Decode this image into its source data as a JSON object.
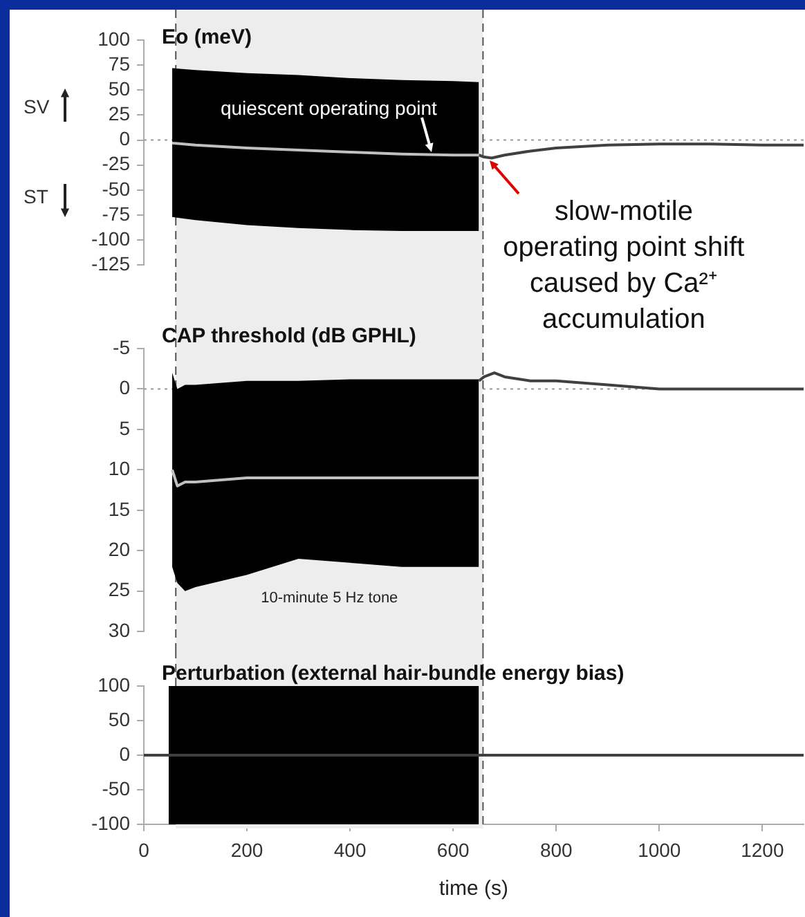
{
  "chart_data": [
    {
      "type": "line",
      "title": "Eo (meV)",
      "xlim": [
        0,
        1280
      ],
      "ylim": [
        -125,
        100
      ],
      "yticks": [
        -125,
        -100,
        -75,
        -50,
        -25,
        0,
        25,
        50,
        75,
        100
      ],
      "tick_labels": "y",
      "grid": false,
      "legend": false,
      "series": [
        {
          "color": "#c0c0c0",
          "x": [
            55,
            100,
            200,
            300,
            400,
            500,
            600,
            650
          ],
          "values": [
            -3,
            -5,
            -8,
            -10,
            -12,
            -14,
            -15,
            -15
          ],
          "lower": [
            -77,
            -80,
            -85,
            -88,
            -90,
            -91,
            -91,
            -91
          ],
          "upper": [
            72,
            70,
            67,
            65,
            62,
            60,
            59,
            58
          ]
        },
        {
          "color": "#404040",
          "x": [
            650,
            660,
            675,
            700,
            750,
            800,
            900,
            1000,
            1100,
            1200,
            1280
          ],
          "values": [
            -15,
            -17,
            -18,
            -15,
            -11,
            -8,
            -5,
            -4,
            -4,
            -5,
            -5
          ]
        }
      ],
      "ref_lines": [
        {
          "axis": "y",
          "value": 0,
          "color": "#999999",
          "line_style": "dotted"
        },
        {
          "axis": "x",
          "value": 62,
          "color": "#555555",
          "line_style": "dashed"
        },
        {
          "axis": "x",
          "value": 658,
          "color": "#555555",
          "line_style": "dashed"
        }
      ],
      "bands": [
        {
          "axis": "x",
          "from": 62,
          "to": 658,
          "color": "#ededed"
        }
      ],
      "annotations": [
        {
          "text": "quiescent operating point",
          "x": 560,
          "y": -15
        },
        {
          "text": "slow-motile operating point shift caused by Ca²⁺ accumulation",
          "x": 660,
          "y": -15
        },
        "SV",
        "ST"
      ]
    },
    {
      "type": "line",
      "title": "CAP threshold (dB GPHL)",
      "xlim": [
        0,
        1280
      ],
      "ylim": [
        30,
        -5
      ],
      "yticks": [
        -5,
        0,
        5,
        10,
        15,
        20,
        25,
        30
      ],
      "tick_labels": "y",
      "grid": false,
      "legend": false,
      "series": [
        {
          "color": "#c0c0c0",
          "x": [
            55,
            65,
            80,
            100,
            200,
            300,
            400,
            500,
            650
          ],
          "values": [
            10,
            12,
            11.5,
            11.5,
            11,
            11,
            11,
            11,
            11
          ],
          "lower": [
            -2,
            0,
            -0.5,
            -0.5,
            -1,
            -1,
            -1.2,
            -1.2,
            -1.2
          ],
          "upper": [
            22,
            24,
            25,
            24.5,
            23,
            21,
            21.5,
            22,
            22
          ]
        },
        {
          "color": "#404040",
          "x": [
            650,
            660,
            680,
            700,
            750,
            800,
            900,
            1000,
            1100,
            1280
          ],
          "values": [
            -1,
            -1.5,
            -2,
            -1.5,
            -1,
            -1,
            -0.5,
            0,
            0,
            0
          ]
        }
      ],
      "ref_lines": [
        {
          "axis": "y",
          "value": 0,
          "color": "#999999",
          "line_style": "dotted"
        },
        {
          "axis": "x",
          "value": 62,
          "color": "#555555",
          "line_style": "dashed"
        },
        {
          "axis": "x",
          "value": 658,
          "color": "#555555",
          "line_style": "dashed"
        }
      ],
      "bands": [
        {
          "axis": "x",
          "from": 62,
          "to": 658,
          "color": "#ededed",
          "label": "10-minute 5 Hz tone"
        }
      ]
    },
    {
      "type": "line",
      "title": "Perturbation (external hair-bundle energy bias)",
      "xlabel": "time (s)",
      "xlim": [
        0,
        1280
      ],
      "xticks": [
        0,
        200,
        400,
        600,
        800,
        1000,
        1200
      ],
      "ylim": [
        -100,
        100
      ],
      "yticks": [
        -100,
        -50,
        0,
        50,
        100
      ],
      "grid": false,
      "legend": false,
      "series": [
        {
          "color": "#404040",
          "x": [
            0,
            48,
            48,
            650,
            650,
            1280
          ],
          "values": [
            0,
            0,
            0,
            0,
            0,
            0
          ],
          "lower": [
            null,
            null,
            -100,
            -100,
            null,
            null
          ],
          "upper": [
            null,
            null,
            100,
            100,
            null,
            null
          ]
        }
      ],
      "ref_lines": [
        {
          "axis": "x",
          "value": 62,
          "color": "#555555",
          "line_style": "dashed"
        },
        {
          "axis": "x",
          "value": 658,
          "color": "#555555",
          "line_style": "dashed"
        }
      ],
      "bands": [
        {
          "axis": "x",
          "from": 62,
          "to": 658,
          "color": "#ededed"
        }
      ]
    }
  ]
}
